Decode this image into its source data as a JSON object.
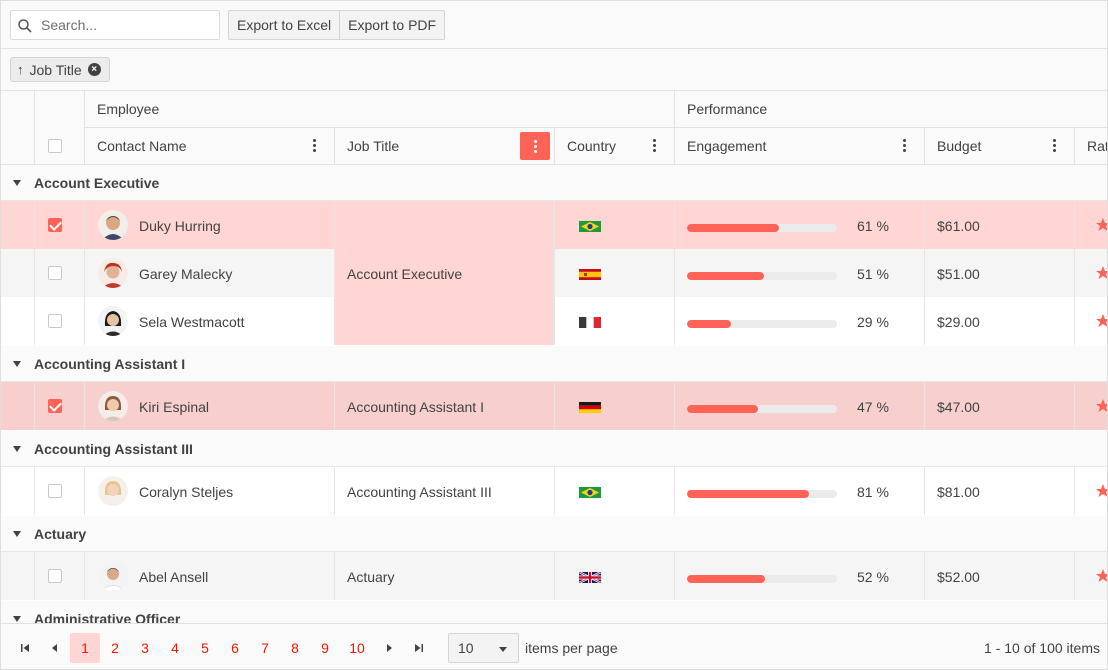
{
  "toolbar": {
    "search_placeholder": "Search...",
    "export_excel": "Export to Excel",
    "export_pdf": "Export to PDF"
  },
  "group_panel": {
    "chip_label": "Job Title"
  },
  "header": {
    "group_employee": "Employee",
    "group_performance": "Performance",
    "columns": {
      "contact_name": "Contact Name",
      "job_title": "Job Title",
      "country": "Country",
      "engagement": "Engagement",
      "budget": "Budget",
      "rating": "Rat"
    }
  },
  "groups": [
    {
      "title": "Account Executive"
    },
    {
      "title": "Accounting Assistant I"
    },
    {
      "title": "Accounting Assistant III"
    },
    {
      "title": "Actuary"
    },
    {
      "title": "Administrative Officer"
    }
  ],
  "rows": [
    {
      "name": "Duky Hurring",
      "job": "Account Executive",
      "country": "Brazil",
      "engagement": 61,
      "engagement_label": "61 %",
      "budget": "$61.00",
      "checked": true
    },
    {
      "name": "Garey Malecky",
      "job": "Account Executive",
      "country": "Spain",
      "engagement": 51,
      "engagement_label": "51 %",
      "budget": "$51.00",
      "checked": false
    },
    {
      "name": "Sela Westmacott",
      "job": "Account Executive",
      "country": "France",
      "engagement": 29,
      "engagement_label": "29 %",
      "budget": "$29.00",
      "checked": false
    },
    {
      "name": "Kiri Espinal",
      "job": "Accounting Assistant I",
      "country": "Germany",
      "engagement": 47,
      "engagement_label": "47 %",
      "budget": "$47.00",
      "checked": true
    },
    {
      "name": "Coralyn Steljes",
      "job": "Accounting Assistant III",
      "country": "Brazil",
      "engagement": 81,
      "engagement_label": "81 %",
      "budget": "$81.00",
      "checked": false
    },
    {
      "name": "Abel Ansell",
      "job": "Actuary",
      "country": "United Kingdom",
      "engagement": 52,
      "engagement_label": "52 %",
      "budget": "$52.00",
      "checked": false
    }
  ],
  "merged_job_cell": "Account Executive",
  "pager": {
    "pages": [
      "1",
      "2",
      "3",
      "4",
      "5",
      "6",
      "7",
      "8",
      "9",
      "10"
    ],
    "active_page": "1",
    "page_size": "10",
    "items_per_page": "items per page",
    "info": "1 - 10 of 100 items"
  },
  "colors": {
    "accent": "#ff6358",
    "selected_row": "#ffd6d3",
    "selected_row_alt": "#f7cfcd"
  },
  "icons": {
    "search": "search-icon",
    "sort_asc": "arrow-up-icon",
    "remove": "x-circle-icon",
    "column_menu": "more-vertical-icon",
    "collapse": "caret-down-icon",
    "rating": "star-icon"
  }
}
